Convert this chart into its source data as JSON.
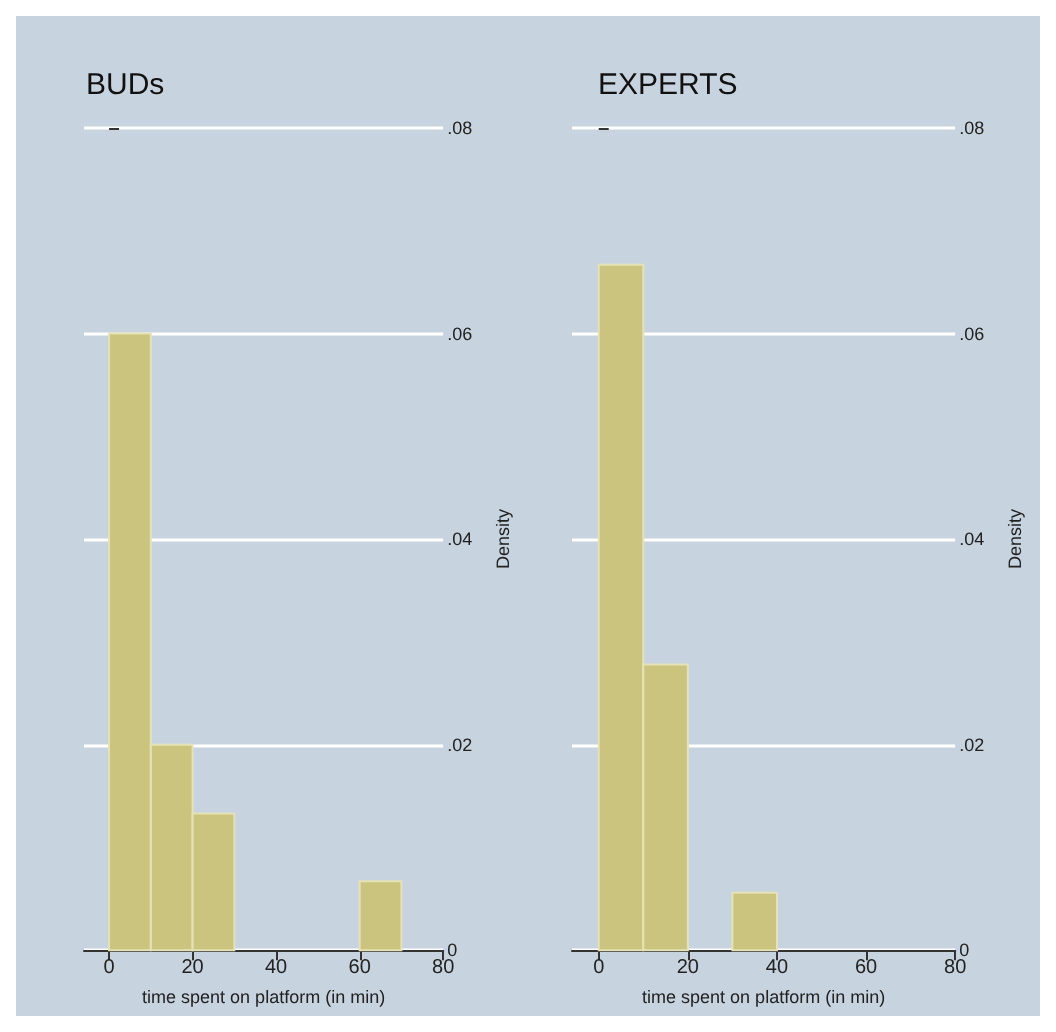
{
  "chart_data": [
    {
      "type": "histogram",
      "title": "BUDs",
      "xlabel": "time spent on platform (in min)",
      "ylabel": "Density",
      "bins": [
        0,
        10,
        20,
        30,
        40,
        50,
        60,
        70
      ],
      "values": [
        0.06,
        0.02,
        0.0133,
        0,
        0,
        0,
        0.0067
      ],
      "color": "#cbc47f",
      "xlim": [
        -6,
        80
      ],
      "xticks": [
        0,
        20,
        40,
        60,
        80
      ],
      "ylim": [
        0,
        0.08
      ],
      "yticks": [
        0,
        {
          "value": 0.02,
          "label": ".02"
        },
        {
          "value": 0.04,
          "label": ".04"
        },
        {
          "value": 0.06,
          "label": ".06"
        },
        {
          "value": 0.08,
          "label": ".08"
        }
      ],
      "grid": "y"
    },
    {
      "type": "histogram",
      "title": "EXPERTS",
      "xlabel": "time spent on platform (in min)",
      "ylabel": "Density",
      "bins": [
        0,
        10,
        20,
        30,
        40
      ],
      "values": [
        0.0667,
        0.0278,
        0,
        0.0056
      ],
      "color": "#cbc47f",
      "xlim": [
        -6,
        80
      ],
      "xticks": [
        0,
        20,
        40,
        60,
        80
      ],
      "ylim": [
        0,
        0.08
      ],
      "yticks": [
        0,
        {
          "value": 0.02,
          "label": ".02"
        },
        {
          "value": 0.04,
          "label": ".04"
        },
        {
          "value": 0.06,
          "label": ".06"
        },
        {
          "value": 0.08,
          "label": ".08"
        }
      ],
      "grid": "y"
    }
  ]
}
